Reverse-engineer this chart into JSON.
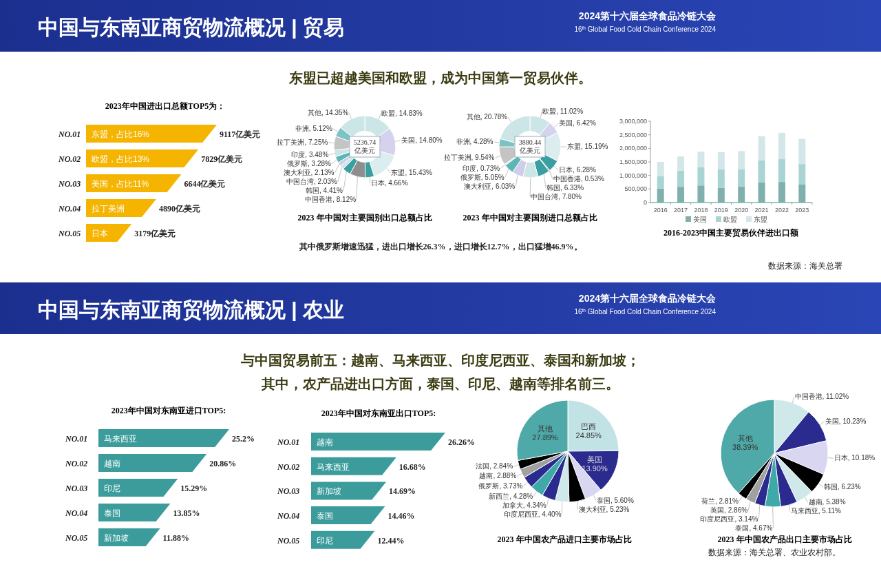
{
  "chart_data": [
    {
      "type": "other",
      "title": "中国与东南亚商贸物流概况 | 贸易",
      "subtitle": "2024第十六届全球食品冷链大会",
      "annotations": [
        "16$^{th}$ Global Food Cold Chain Conference 2024",
        "东盟已超越美国和欧盟，成为中国第一贸易伙伴。"
      ]
    },
    {
      "type": "bar",
      "orientation": "horizontal",
      "title": "2023年中国进出口总额TOP5为：",
      "categories": [
        "NO.01",
        "NO.02",
        "NO.03",
        "NO.04",
        "NO.05"
      ],
      "values": [
        9117,
        7829,
        6644,
        4890,
        3179
      ],
      "value_labels": [
        "9117亿美元",
        "7829亿美元",
        "6644亿美元",
        "4890亿美元",
        "3179亿美元"
      ],
      "color": "#f5b400",
      "annotations": [
        {
          "text": "东盟，占比16%",
          "y": "NO.01"
        },
        {
          "text": "欧盟，占比13%",
          "y": "NO.02"
        },
        {
          "text": "美国，占比11%",
          "y": "NO.03"
        },
        {
          "text": "拉丁美洲",
          "y": "NO.04"
        },
        {
          "text": "日本",
          "y": "NO.05"
        }
      ]
    },
    {
      "type": "donut",
      "title": "2023 年中国对主要国别出口总额占比",
      "categories": [
        "欧盟",
        "美国",
        "东盟",
        "日本",
        "中国香港",
        "韩国",
        "中国台湾",
        "澳大利亚",
        "俄罗斯",
        "印度",
        "拉丁美洲",
        "非洲",
        "其他"
      ],
      "values": [
        14.83,
        14.8,
        15.43,
        4.66,
        8.12,
        4.41,
        2.03,
        2.13,
        3.28,
        3.48,
        7.25,
        5.12,
        14.35
      ],
      "value_labels": [
        "14.83%",
        "14.80%",
        "15.43%",
        "4.66%",
        "8.12%",
        "4.41%",
        "2.03%",
        "2.13%",
        "3.28%",
        "3.48%",
        "7.25%",
        "5.12%",
        "14.35%"
      ],
      "colors": [
        "#cce6e8",
        "#d5d2ee",
        "#dcedef",
        "#3a9fa0",
        "#8e8e8e",
        "#3a9fa0",
        "#cce6e8",
        "#cfcdea",
        "#5db6b6",
        "#cce6e8",
        "#c4c4c4",
        "#7cc4c4",
        "#cce6e8"
      ],
      "annotations": [
        "5236.74 亿美元"
      ]
    },
    {
      "type": "donut",
      "title": "2023 年中国对主要国别进口总额占比",
      "categories": [
        "欧盟",
        "美国",
        "东盟",
        "日本",
        "中国香港",
        "韩国",
        "中国台湾",
        "澳大利亚",
        "俄罗斯",
        "印度",
        "拉丁美洲",
        "非洲",
        "其他"
      ],
      "values": [
        11.02,
        6.42,
        15.19,
        6.28,
        0.53,
        6.33,
        7.8,
        6.03,
        5.05,
        0.73,
        9.54,
        4.28,
        20.78
      ],
      "value_labels": [
        "11.02%",
        "6.42%",
        "15.19%",
        "6.28%",
        "0.53%",
        "6.33%",
        "7.80%",
        "6.03%",
        "5.05%",
        "0.73%",
        "9.54%",
        "4.28%",
        "20.78%"
      ],
      "colors": [
        "#cce6e8",
        "#d5d2ee",
        "#dcedef",
        "#3a9fa0",
        "#8e8e8e",
        "#3a9fa0",
        "#cce6e8",
        "#cfcdea",
        "#5db6b6",
        "#cce6e8",
        "#c4c4c4",
        "#7cc4c4",
        "#cce6e8"
      ],
      "annotations": [
        "3880.44 亿美元",
        "其中俄罗斯增速迅猛，进出口增长26.3%，进口增长12.7%，出口猛增46.9%。"
      ]
    },
    {
      "type": "bar",
      "stacked": true,
      "title": "2016-2023中国主要贸易伙伴进出口额",
      "categories": [
        "2016",
        "2017",
        "2018",
        "2019",
        "2020",
        "2021",
        "2022",
        "2023"
      ],
      "series": [
        {
          "name": "美国",
          "color": "#7fb0ac",
          "values": [
            520000,
            580000,
            630000,
            540000,
            590000,
            750000,
            760000,
            660000
          ]
        },
        {
          "name": "欧盟",
          "color": "#a9d4d3",
          "values": [
            450000,
            590000,
            670000,
            690000,
            630000,
            800000,
            840000,
            760000
          ]
        },
        {
          "name": "东盟",
          "color": "#d3e7e8",
          "values": [
            530000,
            530000,
            580000,
            630000,
            680000,
            900000,
            970000,
            930000
          ]
        }
      ],
      "ylim": [
        0,
        3000000
      ],
      "yticks": [
        0,
        {
          "value": 500000,
          "label": "500,000"
        },
        {
          "value": 1000000,
          "label": "1,000,000"
        },
        {
          "value": 1500000,
          "label": "1,500,000"
        },
        {
          "value": 2000000,
          "label": "2,000,000"
        },
        {
          "value": 2500000,
          "label": "2,500,000"
        },
        {
          "value": 3000000,
          "label": "3,000,000"
        }
      ],
      "legend": "bottom",
      "annotations": [
        "数据来源：海关总署"
      ]
    },
    {
      "type": "other",
      "title": "中国与东南亚商贸物流概况 | 农业",
      "subtitle": "2024第十六届全球食品冷链大会",
      "annotations": [
        "16$^{th}$ Global Food Cold Chain Conference 2024",
        "与中国贸易前五：越南、马来西亚、印度尼西亚、泰国和新加坡；",
        "其中，农产品进出口方面，泰国、印尼、越南等排名前三。"
      ]
    },
    {
      "type": "bar",
      "orientation": "horizontal",
      "title": "2023年中国对东南亚进口TOP5:",
      "categories": [
        "NO.01",
        "NO.02",
        "NO.03",
        "NO.04",
        "NO.05"
      ],
      "values": [
        25.2,
        20.86,
        15.29,
        13.85,
        11.88
      ],
      "value_labels": [
        "25.2%",
        "20.86%",
        "15.29%",
        "13.85%",
        "11.88%"
      ],
      "color": "#3c9c9c",
      "annotations": [
        {
          "text": "马来西亚",
          "y": "NO.01"
        },
        {
          "text": "越南",
          "y": "NO.02"
        },
        {
          "text": "印尼",
          "y": "NO.03"
        },
        {
          "text": "泰国",
          "y": "NO.04"
        },
        {
          "text": "新加坡",
          "y": "NO.05"
        }
      ]
    },
    {
      "type": "bar",
      "orientation": "horizontal",
      "title": "2023年中国对东南亚出口TOP5:",
      "categories": [
        "NO.01",
        "NO.02",
        "NO.03",
        "NO.04",
        "NO.05"
      ],
      "values": [
        26.26,
        16.68,
        14.69,
        14.46,
        12.44
      ],
      "value_labels": [
        "26.26%",
        "16.68%",
        "14.69%",
        "14.46%",
        "12.44%"
      ],
      "color": "#3c9c9c",
      "annotations": [
        {
          "text": "越南",
          "y": "NO.01"
        },
        {
          "text": "马来西亚",
          "y": "NO.02"
        },
        {
          "text": "新加坡",
          "y": "NO.03"
        },
        {
          "text": "泰国",
          "y": "NO.04"
        },
        {
          "text": "印尼",
          "y": "NO.05"
        }
      ]
    },
    {
      "type": "pie",
      "title": "2023 年中国农产品进口主要市场占比",
      "categories": [
        "巴西",
        "美国",
        "泰国",
        "澳大利亚",
        "印度尼西亚",
        "加拿大",
        "新西兰",
        "俄罗斯",
        "越南",
        "法国",
        "其他"
      ],
      "values": [
        24.85,
        13.9,
        5.6,
        5.23,
        4.4,
        4.34,
        4.28,
        3.73,
        2.88,
        2.84,
        27.89
      ],
      "value_labels": [
        "24.85%",
        "13.90%",
        "5.60%",
        "5.23%",
        "4.40%",
        "4.34%",
        "4.28%",
        "3.73%",
        "2.88%",
        "2.84%",
        "27.89%"
      ],
      "colors": [
        "#c2e3e6",
        "#2b2b8f",
        "#d8d6f0",
        "#000000",
        "#cfe8ea",
        "#2b2b8f",
        "#3fa8a8",
        "#2b2b8f",
        "#a0a0a0",
        "#000000",
        "#4fa9a8"
      ]
    },
    {
      "type": "pie",
      "title": "2023 年中国农产品出口主要市场占比",
      "categories": [
        "中国香港",
        "美国",
        "日本",
        "韩国",
        "越南",
        "马来西亚",
        "泰国",
        "印度尼西亚",
        "英国",
        "荷兰",
        "其他"
      ],
      "values": [
        11.02,
        10.23,
        10.18,
        6.23,
        5.38,
        5.11,
        4.67,
        3.14,
        2.86,
        2.81,
        38.39
      ],
      "value_labels": [
        "11.02%",
        "10.23%",
        "10.18%",
        "6.23%",
        "5.38%",
        "5.11%",
        "4.67%",
        "3.14%",
        "2.86%",
        "2.81%",
        "38.39%"
      ],
      "colors": [
        "#cfe8ea",
        "#2b2b8f",
        "#d8d6f0",
        "#000000",
        "#cfe8ea",
        "#2b2b8f",
        "#3fa8a8",
        "#2b2b8f",
        "#a0a0a0",
        "#000000",
        "#4fa9a8"
      ],
      "annotations": [
        "数据来源：海关总署、农业农村部。"
      ]
    }
  ]
}
